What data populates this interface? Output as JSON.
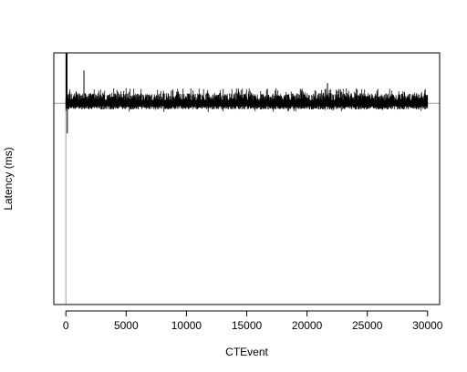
{
  "chart_data": {
    "type": "line",
    "title": "",
    "xlabel": "CTEvent",
    "ylabel": "Latency (ms)",
    "xlim": [
      -1000,
      31000
    ],
    "ylim": [
      0,
      100
    ],
    "x_ticks": [
      0,
      5000,
      10000,
      15000,
      20000,
      25000,
      30000
    ],
    "x_tick_labels": [
      "0",
      "5000",
      "10000",
      "15000",
      "20000",
      "25000",
      "30000"
    ],
    "y_ticks_shown": false,
    "reference_lines": {
      "vertical_x": 0,
      "horizontal_y": 80
    },
    "series": [
      {
        "values_summary": "dense noisy latency trace of ~30000 events fluctuating around the reference level 80",
        "baseline": 80,
        "typical_range": [
          78,
          86
        ],
        "notable_points": [
          {
            "x": 60,
            "y": 100
          },
          {
            "x": 120,
            "y": 68
          },
          {
            "x": 1500,
            "y": 93
          },
          {
            "x": 21700,
            "y": 88
          }
        ],
        "n_events": 30000
      }
    ],
    "grid": false,
    "colors": {
      "series": "#000000",
      "reference": "#a0a0a0",
      "frame": "#000000"
    }
  }
}
